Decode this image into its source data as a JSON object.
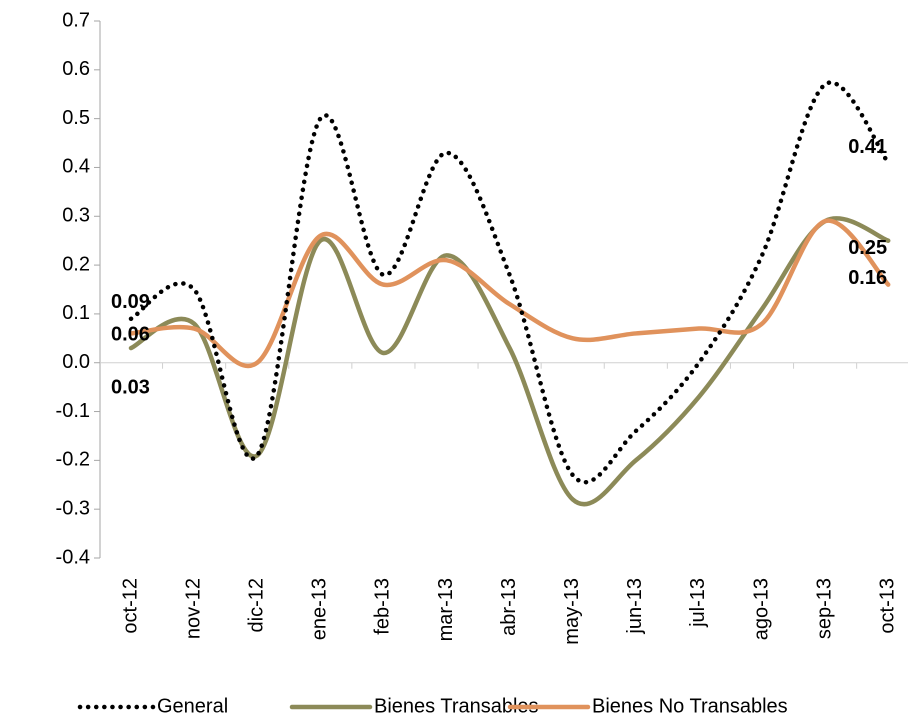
{
  "chart_data": {
    "type": "line",
    "categories": [
      "oct-12",
      "nov-12",
      "dic-12",
      "ene-13",
      "feb-13",
      "mar-13",
      "abr-13",
      "may-13",
      "jun-13",
      "jul-13",
      "ago-13",
      "sep-13",
      "oct-13"
    ],
    "series": [
      {
        "name": "General",
        "color": "#000000",
        "values": [
          0.09,
          0.15,
          -0.19,
          0.5,
          0.18,
          0.43,
          0.18,
          -0.23,
          -0.14,
          0.0,
          0.22,
          0.57,
          0.41
        ],
        "value_labels": {
          "0": "0.09",
          "12": "0.41"
        }
      },
      {
        "name": "Bienes Transables",
        "color": "#8c8a58",
        "values": [
          0.03,
          0.08,
          -0.19,
          0.25,
          0.02,
          0.22,
          0.03,
          -0.28,
          -0.2,
          -0.07,
          0.11,
          0.29,
          0.25
        ],
        "value_labels": {
          "0": "0.03",
          "12": "0.25"
        }
      },
      {
        "name": "Bienes No Transables",
        "color": "#e0925c",
        "values": [
          0.06,
          0.07,
          0.0,
          0.26,
          0.16,
          0.21,
          0.12,
          0.05,
          0.06,
          0.07,
          0.08,
          0.29,
          0.16
        ],
        "value_labels": {
          "0": "0.06",
          "12": "0.16"
        }
      }
    ],
    "ylim": [
      -0.4,
      0.7
    ],
    "yticks": [
      -0.4,
      -0.3,
      -0.2,
      -0.1,
      {
        "value": 0,
        "label": "0.0"
      },
      0.1,
      0.2,
      0.3,
      0.4,
      0.5,
      0.6,
      0.7
    ],
    "legend": "bottom"
  }
}
